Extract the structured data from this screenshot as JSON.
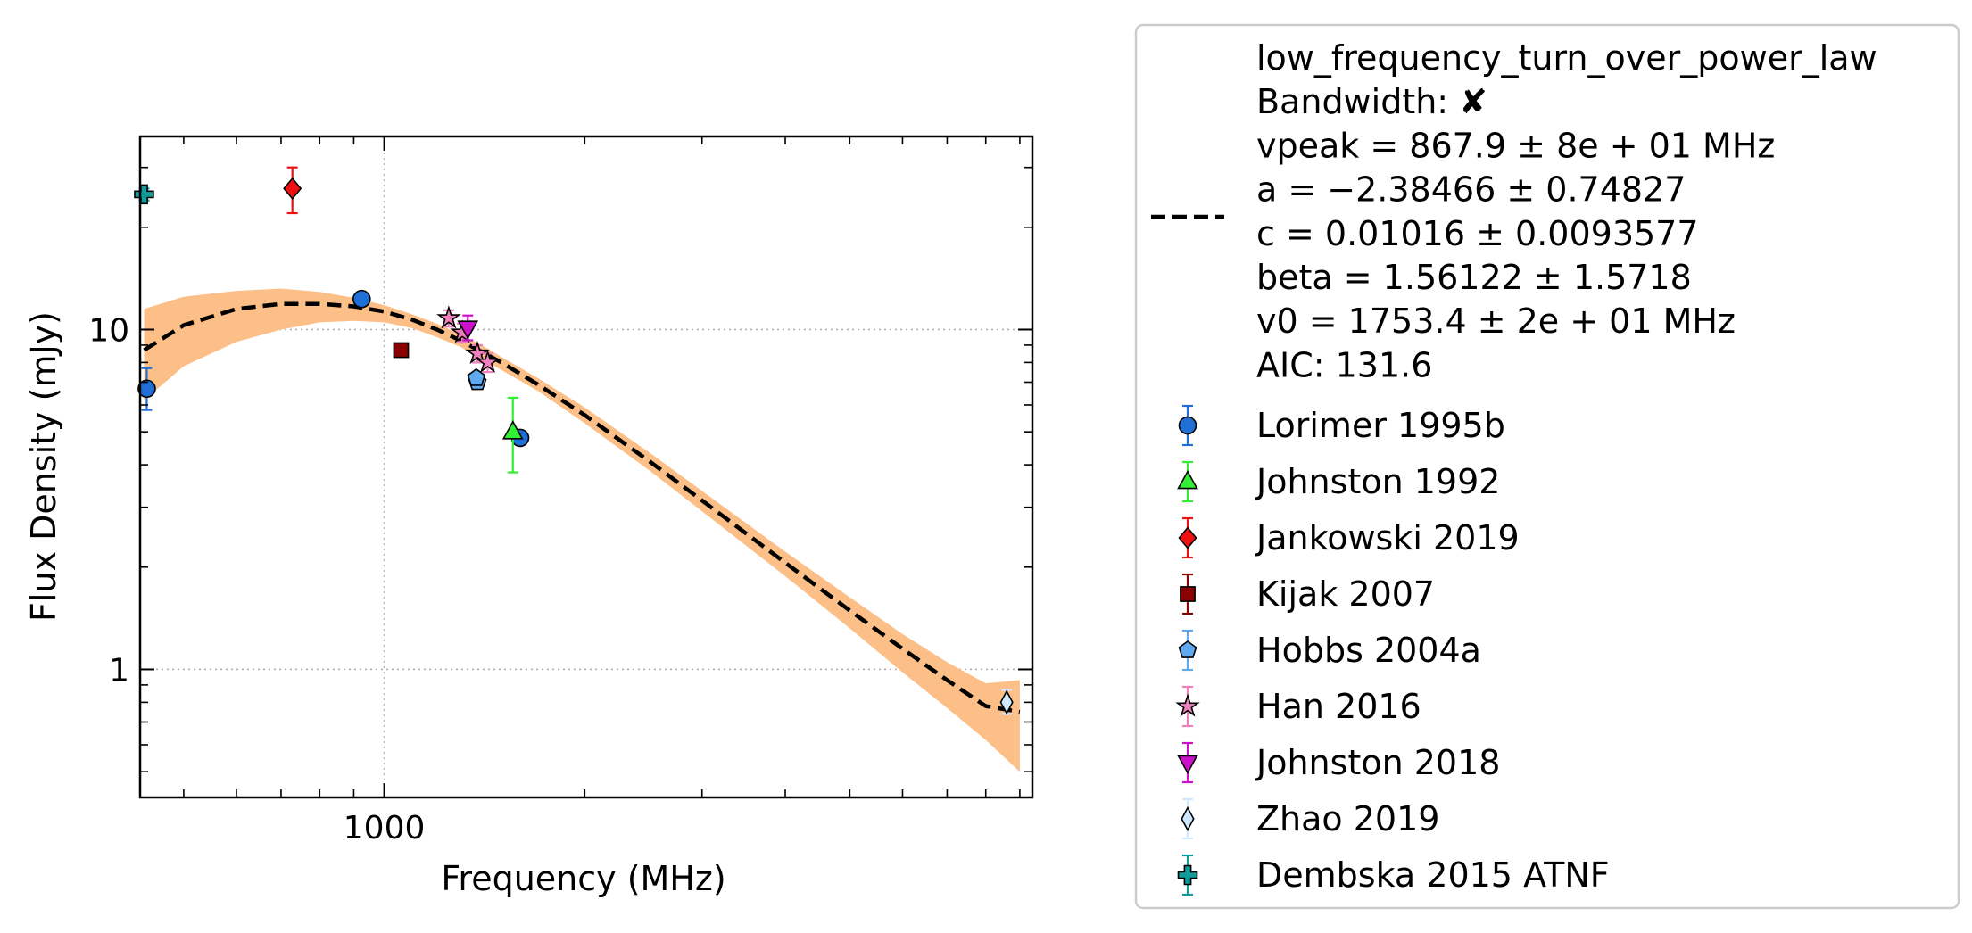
{
  "chart_data": {
    "type": "scatter",
    "title": "",
    "xlabel": "Frequency (MHz)",
    "ylabel": "Flux Density (mJy)",
    "xscale": "log",
    "yscale": "log",
    "xlim": [
      430,
      9400
    ],
    "ylim": [
      0.42,
      37
    ],
    "x_ticks": [
      {
        "value": 1000,
        "label": "1000"
      }
    ],
    "y_ticks": [
      {
        "value": 1,
        "label": "1"
      },
      {
        "value": 10,
        "label": "10"
      }
    ],
    "grid": "major, dotted",
    "legend_position": "outside-right",
    "fit": {
      "name": "low_frequency_turn_over_power_law",
      "lines": [
        "low_frequency_turn_over_power_law",
        "Bandwidth: ✘",
        "vpeak = 867.9 ± 8e + 01 MHz",
        "a = −2.38466 ± 0.74827",
        "c = 0.01016 ± 0.0093577",
        "beta = 1.56122 ± 1.5718",
        "v0 = 1753.4 ± 2e + 01 MHz",
        "AIC: 131.6"
      ],
      "color": "#000000",
      "band_color": "#fdbf88",
      "curve": {
        "x": [
          436,
          500,
          600,
          700,
          800,
          900,
          1000,
          1100,
          1200,
          1300,
          1400,
          1500,
          1700,
          2000,
          2500,
          3000,
          4000,
          5000,
          6000,
          7000,
          8000,
          9000
        ],
        "y": [
          8.7,
          10.3,
          11.5,
          11.9,
          11.9,
          11.7,
          11.3,
          10.7,
          10.0,
          9.3,
          8.6,
          8.0,
          6.9,
          5.6,
          4.1,
          3.14,
          2.06,
          1.49,
          1.15,
          0.93,
          0.78,
          0.75
        ],
        "upper": [
          11.5,
          12.5,
          13.0,
          13.2,
          12.9,
          12.4,
          11.8,
          11.1,
          10.4,
          9.7,
          9.0,
          8.3,
          7.2,
          5.9,
          4.35,
          3.35,
          2.22,
          1.63,
          1.27,
          1.05,
          0.91,
          0.93
        ],
        "lower": [
          6.2,
          7.8,
          9.2,
          10.0,
          10.5,
          10.6,
          10.5,
          10.1,
          9.5,
          8.9,
          8.2,
          7.6,
          6.6,
          5.3,
          3.85,
          2.92,
          1.88,
          1.32,
          0.98,
          0.77,
          0.62,
          0.5
        ]
      }
    },
    "series": [
      {
        "name": "Lorimer 1995b",
        "marker": "circle",
        "color": "#1f6fd6",
        "points": [
          {
            "x": 440,
            "y": 6.7,
            "ylo": 5.8,
            "yhi": 7.7
          },
          {
            "x": 925,
            "y": 12.3,
            "ylo": 11.9,
            "yhi": 12.7
          },
          {
            "x": 1600,
            "y": 4.8,
            "ylo": 4.6,
            "yhi": 5.0
          }
        ]
      },
      {
        "name": "Johnston 1992",
        "marker": "triangle-up",
        "color": "#33ee33",
        "points": [
          {
            "x": 1560,
            "y": 5.0,
            "ylo": 3.8,
            "yhi": 6.3
          }
        ]
      },
      {
        "name": "Jankowski 2019",
        "marker": "diamond",
        "color": "#ee1111",
        "points": [
          {
            "x": 728,
            "y": 26.0,
            "ylo": 22.0,
            "yhi": 30.0
          }
        ]
      },
      {
        "name": "Kijak 2007",
        "marker": "square",
        "color": "#8b0000",
        "points": [
          {
            "x": 1060,
            "y": 8.7
          }
        ]
      },
      {
        "name": "Hobbs 2004a",
        "marker": "pentagon",
        "color": "#5ea9f0",
        "points": [
          {
            "x": 1380,
            "y": 7.0,
            "ylo": 6.8,
            "yhi": 7.2
          },
          {
            "x": 1375,
            "y": 7.2,
            "ylo": 7.0,
            "yhi": 7.4
          }
        ]
      },
      {
        "name": "Han 2016",
        "marker": "star",
        "color": "#f07fbe",
        "points": [
          {
            "x": 1250,
            "y": 10.8,
            "ylo": 10.2,
            "yhi": 11.4
          },
          {
            "x": 1310,
            "y": 9.8,
            "ylo": 9.2,
            "yhi": 10.4
          },
          {
            "x": 1380,
            "y": 8.5,
            "ylo": 8.0,
            "yhi": 9.0
          },
          {
            "x": 1430,
            "y": 8.0,
            "ylo": 7.5,
            "yhi": 8.5
          }
        ]
      },
      {
        "name": "Johnston 2018",
        "marker": "triangle-down",
        "color": "#cc11cc",
        "points": [
          {
            "x": 1335,
            "y": 10.1,
            "ylo": 9.3,
            "yhi": 11.0
          }
        ]
      },
      {
        "name": "Zhao 2019",
        "marker": "thin-diamond",
        "color": "#cfe8ff",
        "points": [
          {
            "x": 8600,
            "y": 0.8,
            "ylo": 0.74,
            "yhi": 0.87
          }
        ]
      },
      {
        "name": "Dembska 2015 ATNF",
        "marker": "plus",
        "color": "#129b9b",
        "points": [
          {
            "x": 436,
            "y": 25.0,
            "ylo": 24.0,
            "yhi": 26.0
          }
        ]
      }
    ]
  }
}
